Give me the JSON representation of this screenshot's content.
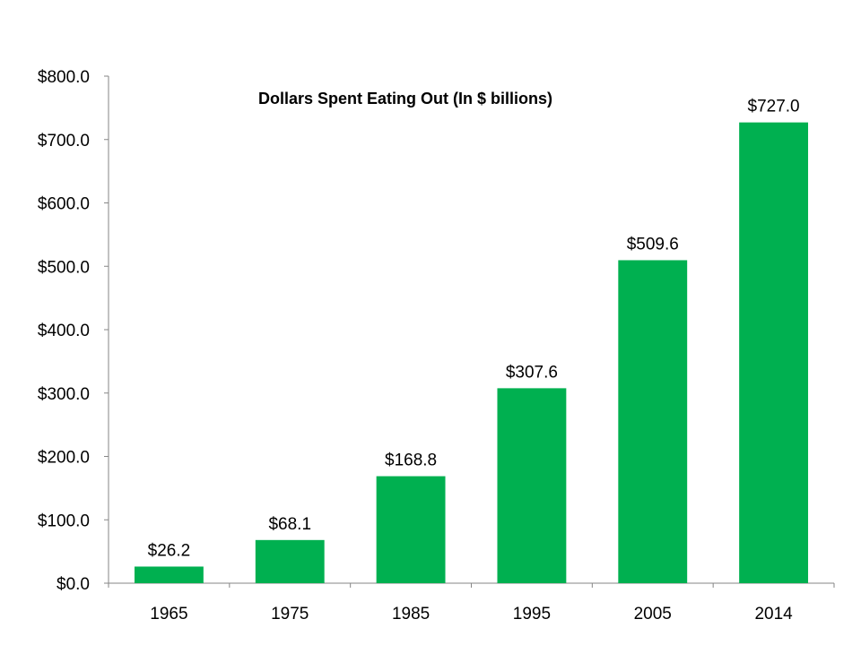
{
  "chart_data": {
    "type": "bar",
    "title": "Dollars Spent Eating Out (In $ billions)",
    "xlabel": "",
    "ylabel": "",
    "categories": [
      "1965",
      "1975",
      "1985",
      "1995",
      "2005",
      "2014"
    ],
    "values": [
      26.2,
      68.1,
      168.8,
      307.6,
      509.6,
      727.0
    ],
    "value_labels": [
      "$26.2",
      "$68.1",
      "$168.8",
      "$307.6",
      "$509.6",
      "$727.0"
    ],
    "ylim": [
      0,
      800
    ],
    "y_ticks": [
      0,
      100,
      200,
      300,
      400,
      500,
      600,
      700,
      800
    ],
    "y_tick_labels": [
      "$0.0",
      "$100.0",
      "$200.0",
      "$300.0",
      "$400.0",
      "$500.0",
      "$600.0",
      "$700.0",
      "$800.0"
    ],
    "grid": false,
    "legend": "none",
    "bar_color": "#00b050"
  }
}
